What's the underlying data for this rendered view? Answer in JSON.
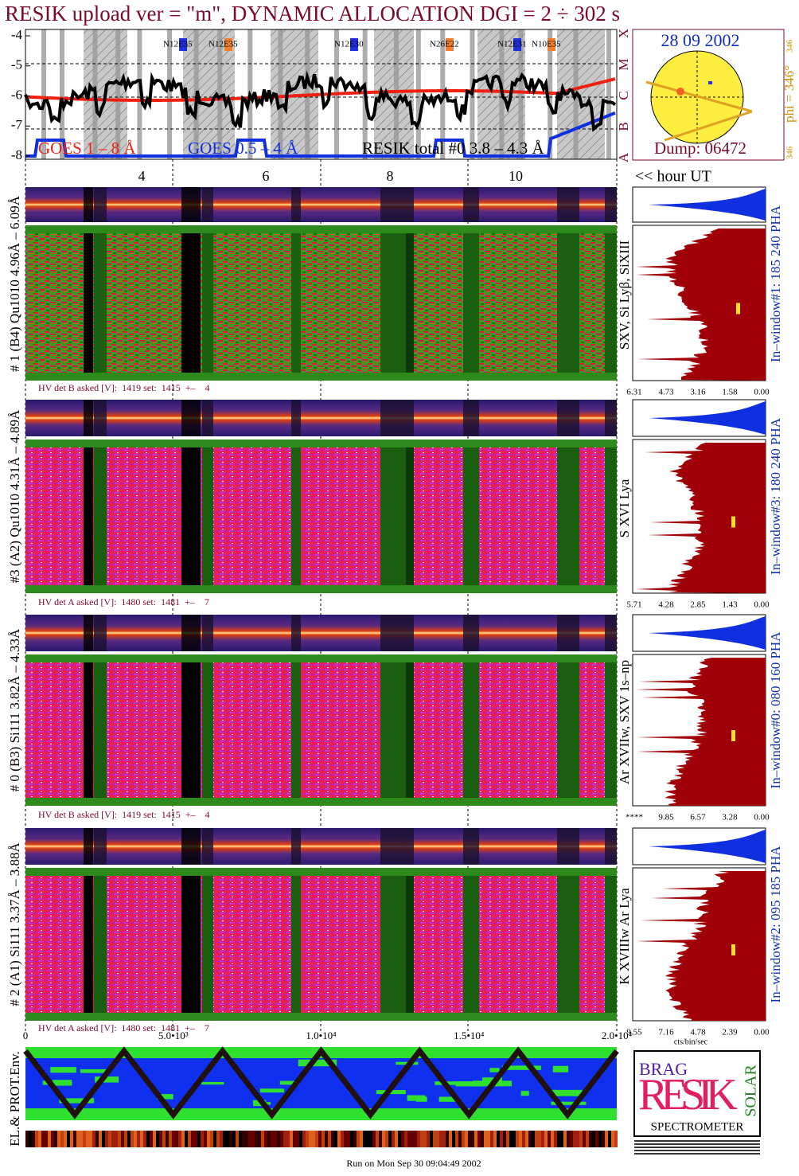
{
  "title": "RESIK upload ver = \"m\", DYNAMIC ALLOCATION  DGI =   2 ÷ 302 s",
  "goes_panel": {
    "y_labels": [
      "-4",
      "-5",
      "-6",
      "-7",
      "-8"
    ],
    "class_labels": [
      "X",
      "M",
      "C",
      "B",
      "A"
    ],
    "regions": [
      "N12E35",
      "N12E35",
      "N12E30",
      "N26E22",
      "N12E31",
      "N10E35"
    ],
    "legend": [
      "GOES 1 – 8 Å",
      "GOES 0.5 – 4 Å",
      "RESIK total #0 3.8 – 4.3 Å"
    ],
    "x_labels": [
      "4",
      "6",
      "8",
      "10"
    ],
    "x_unit": "<< hour UT"
  },
  "sun": {
    "date": "28 09 2002",
    "top_value": "346",
    "phi": "phi = 346°",
    "bottom_value": "346",
    "dump": "Dump: 06472"
  },
  "panels": [
    {
      "label": "# 1 (B4) Qu1010 4.96Å – 6.09Å",
      "lines": "SXV, Si Lyβ, SiXIII",
      "window": "In–window#1:  185 240 PHA",
      "hv": "HV det B asked [V]:  1419 set:  1415  +–    4",
      "hist_ticks": [
        "6.31",
        "4.73",
        "3.16",
        "1.58",
        "0.00"
      ]
    },
    {
      "label": "#3 (A2) Qu1010  4.31Å – 4.89Å",
      "lines": "S XVI Lya",
      "window": "In–window#3:  180 240 PHA",
      "hv": "HV det A asked [V]:  1480 set:  1481  +–    7",
      "hist_ticks": [
        "5.71",
        "4.28",
        "2.85",
        "1.43",
        "0.00"
      ]
    },
    {
      "label": "# 0 (B3) Si111  3.82Å – 4.33Å",
      "lines": "Ar XVIIw, SXV 1s–np",
      "window": "In–window#0:  080 160 PHA",
      "hv": "HV det B asked [V]:  1419 set:  1415  +–    4",
      "hist_ticks": [
        "****",
        "9.85",
        "6.57",
        "3.28",
        "0.00"
      ]
    },
    {
      "label": "# 2 (A1) Si111  3.37Å – 3.88Å",
      "lines": "K XVIIIw  Ar Lya",
      "window": "In–window#2:  095 185 PHA",
      "hv": "HV det A asked [V]:  1480 set:  1481  +–    7",
      "hist_ticks": [
        "9.55",
        "7.16",
        "4.78",
        "2.39",
        "0.00"
      ]
    }
  ],
  "time_axis": [
    "0",
    "5.0•10³",
    "1.0•10⁴",
    "1.5•10⁴",
    "2.0•10⁴"
  ],
  "hist_unit": "cts/bin/sec",
  "env_label": "EL.& PROT.Env.",
  "logo": {
    "brag": "BRAG",
    "resik": "RESIK",
    "solar": "SOLAR",
    "name": "SPECTROMETER"
  },
  "footer": "Run on Mon Sep 30 09:04:49 2002"
}
